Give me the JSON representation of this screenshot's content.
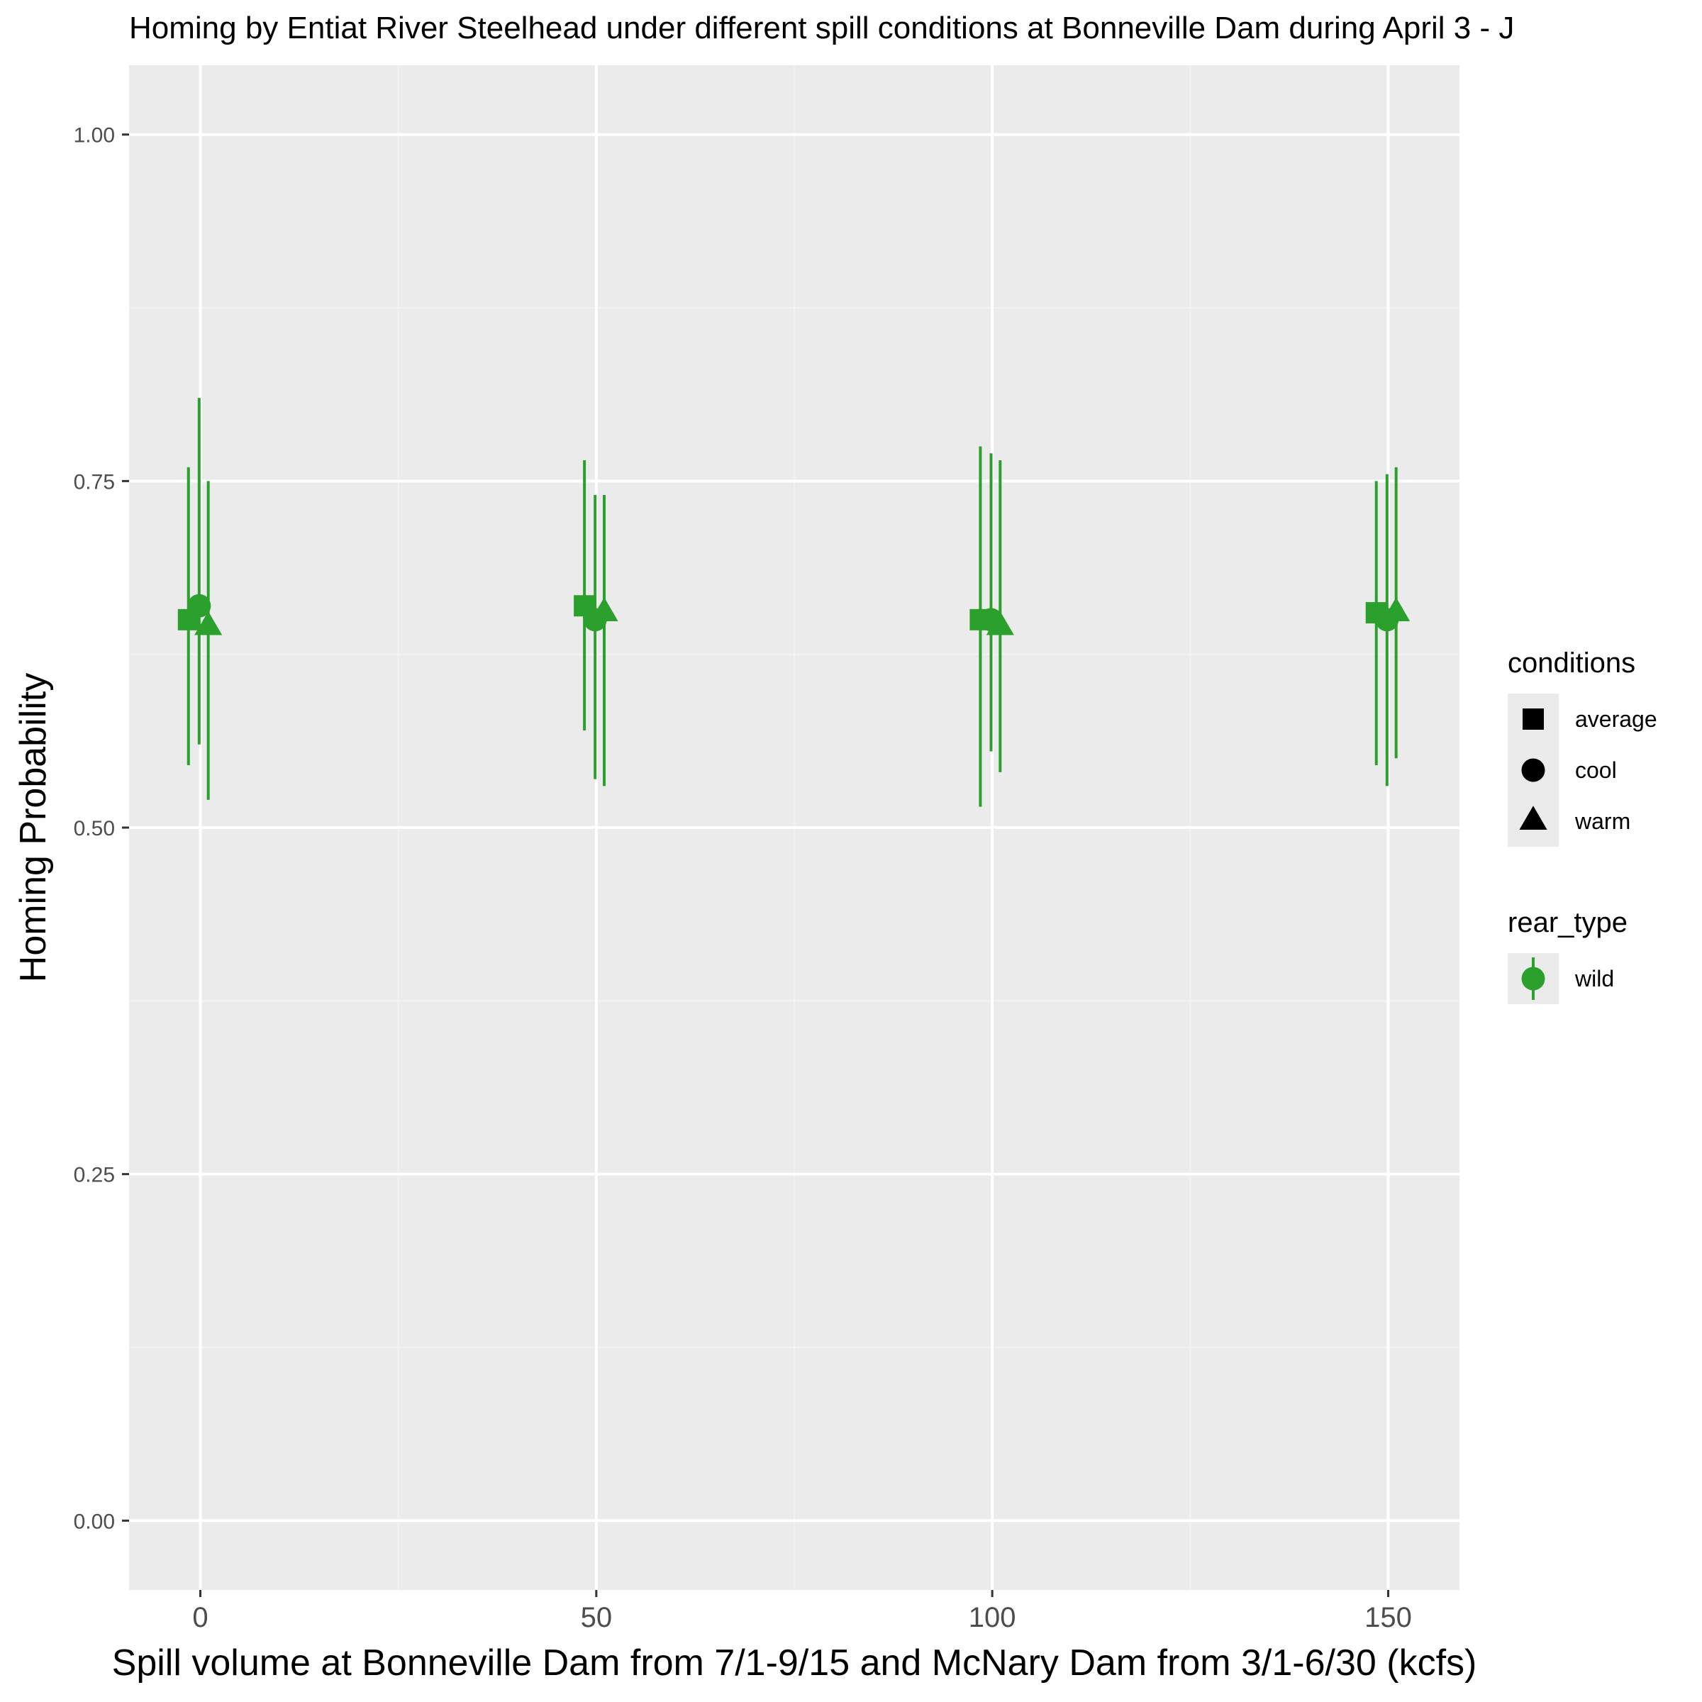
{
  "chart_data": {
    "type": "scatter",
    "title": "Homing by Entiat River Steelhead under different spill conditions at Bonneville Dam during April 3 - J",
    "xlabel": "Spill volume at Bonneville Dam from 7/1-9/15 and McNary Dam from 3/1-6/30 (kcfs)",
    "ylabel": "Homing Probability",
    "xlim": [
      -9,
      159
    ],
    "ylim": [
      -0.05,
      1.05
    ],
    "x_ticks": [
      0,
      50,
      100,
      150
    ],
    "x_tick_labels": [
      "0",
      "50",
      "100",
      "150"
    ],
    "y_ticks": [
      0,
      0.25,
      0.5,
      0.75,
      1
    ],
    "y_tick_labels": [
      "0.00",
      "0.25",
      "0.50",
      "0.75",
      "1.00"
    ],
    "grid": true,
    "legend_position": "right",
    "legends": [
      {
        "title": "conditions",
        "entries": [
          {
            "label": "average",
            "shape": "square"
          },
          {
            "label": "cool",
            "shape": "circle"
          },
          {
            "label": "warm",
            "shape": "triangle"
          }
        ]
      },
      {
        "title": "rear_type",
        "entries": [
          {
            "label": "wild",
            "shape": "circle",
            "color": "#2ca02c"
          }
        ]
      }
    ],
    "series": [
      {
        "name": "average",
        "shape": "square",
        "color": "#2ca02c",
        "x": [
          0,
          50,
          100,
          150
        ],
        "y": [
          0.65,
          0.66,
          0.65,
          0.655
        ],
        "ymin": [
          0.545,
          0.57,
          0.515,
          0.545
        ],
        "ymax": [
          0.76,
          0.765,
          0.775,
          0.75
        ]
      },
      {
        "name": "cool",
        "shape": "circle",
        "color": "#2ca02c",
        "x": [
          0,
          50,
          100,
          150
        ],
        "y": [
          0.66,
          0.65,
          0.65,
          0.65
        ],
        "ymin": [
          0.56,
          0.535,
          0.555,
          0.53
        ],
        "ymax": [
          0.81,
          0.74,
          0.77,
          0.755
        ]
      },
      {
        "name": "warm",
        "shape": "triangle",
        "color": "#2ca02c",
        "x": [
          0,
          50,
          100,
          150
        ],
        "y": [
          0.645,
          0.655,
          0.645,
          0.655
        ],
        "ymin": [
          0.52,
          0.53,
          0.54,
          0.55
        ],
        "ymax": [
          0.75,
          0.74,
          0.765,
          0.76
        ]
      }
    ]
  },
  "colors": {
    "panel_background": "#ebebeb",
    "grid_major": "#ffffff",
    "grid_minor": "#f2f2f2",
    "series_color": "#2ca02c",
    "legend_key_background": "#ebebeb",
    "legend_shape": "#000000"
  }
}
